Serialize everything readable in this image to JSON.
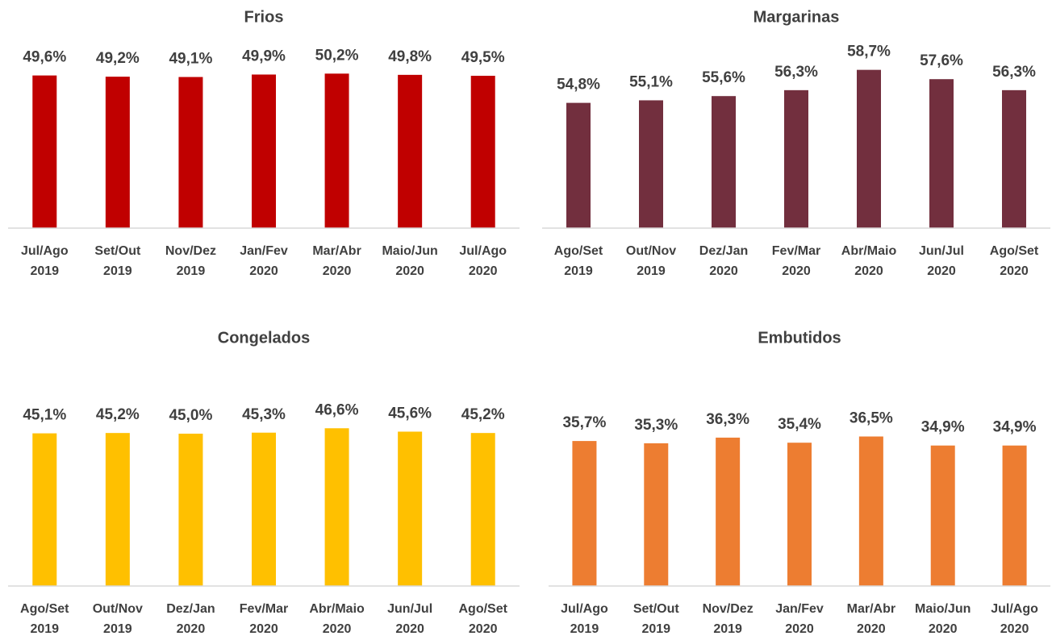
{
  "chart_data": [
    {
      "type": "bar",
      "title": "Frios",
      "color": "#c00000",
      "ylim": [
        0,
        55
      ],
      "categories": [
        [
          "Jul/Ago",
          "2019"
        ],
        [
          "Set/Out",
          "2019"
        ],
        [
          "Nov/Dez",
          "2019"
        ],
        [
          "Jan/Fev",
          "2020"
        ],
        [
          "Mar/Abr",
          "2020"
        ],
        [
          "Maio/Jun",
          "2020"
        ],
        [
          "Jul/Ago",
          "2020"
        ]
      ],
      "values": [
        49.6,
        49.2,
        49.1,
        49.9,
        50.2,
        49.8,
        49.5
      ],
      "value_labels": [
        "49,6%",
        "49,2%",
        "49,1%",
        "49,9%",
        "50,2%",
        "49,8%",
        "49,5%"
      ]
    },
    {
      "type": "bar",
      "title": "Margarinas",
      "color": "#722f3e",
      "ylim": [
        40,
        60
      ],
      "categories": [
        [
          "Ago/Set",
          "2019"
        ],
        [
          "Out/Nov",
          "2019"
        ],
        [
          "Dez/Jan",
          "2020"
        ],
        [
          "Fev/Mar",
          "2020"
        ],
        [
          "Abr/Maio",
          "2020"
        ],
        [
          "Jun/Jul",
          "2020"
        ],
        [
          "Ago/Set",
          "2020"
        ]
      ],
      "values": [
        54.8,
        55.1,
        55.6,
        56.3,
        58.7,
        57.6,
        56.3
      ],
      "value_labels": [
        "54,8%",
        "55,1%",
        "55,6%",
        "56,3%",
        "58,7%",
        "57,6%",
        "56,3%"
      ]
    },
    {
      "type": "bar",
      "title": "Congelados",
      "color": "#ffc000",
      "ylim": [
        0,
        50
      ],
      "categories": [
        [
          "Ago/Set",
          "2019"
        ],
        [
          "Out/Nov",
          "2019"
        ],
        [
          "Dez/Jan",
          "2020"
        ],
        [
          "Fev/Mar",
          "2020"
        ],
        [
          "Abr/Maio",
          "2020"
        ],
        [
          "Jun/Jul",
          "2020"
        ],
        [
          "Ago/Set",
          "2020"
        ]
      ],
      "values": [
        45.1,
        45.2,
        45.0,
        45.3,
        46.6,
        45.6,
        45.2
      ],
      "value_labels": [
        "45,1%",
        "45,2%",
        "45,0%",
        "45,3%",
        "46,6%",
        "45,6%",
        "45,2%"
      ]
    },
    {
      "type": "bar",
      "title": "Embutidos",
      "color": "#ed7d31",
      "ylim": [
        10,
        40
      ],
      "categories": [
        [
          "Jul/Ago",
          "2019"
        ],
        [
          "Set/Out",
          "2019"
        ],
        [
          "Nov/Dez",
          "2019"
        ],
        [
          "Jan/Fev",
          "2020"
        ],
        [
          "Mar/Abr",
          "2020"
        ],
        [
          "Maio/Jun",
          "2020"
        ],
        [
          "Jul/Ago",
          "2020"
        ]
      ],
      "values": [
        35.7,
        35.3,
        36.3,
        35.4,
        36.5,
        34.9,
        34.9
      ],
      "value_labels": [
        "35,7%",
        "35,3%",
        "36,3%",
        "35,4%",
        "36,5%",
        "34,9%",
        "34,9%"
      ]
    }
  ]
}
